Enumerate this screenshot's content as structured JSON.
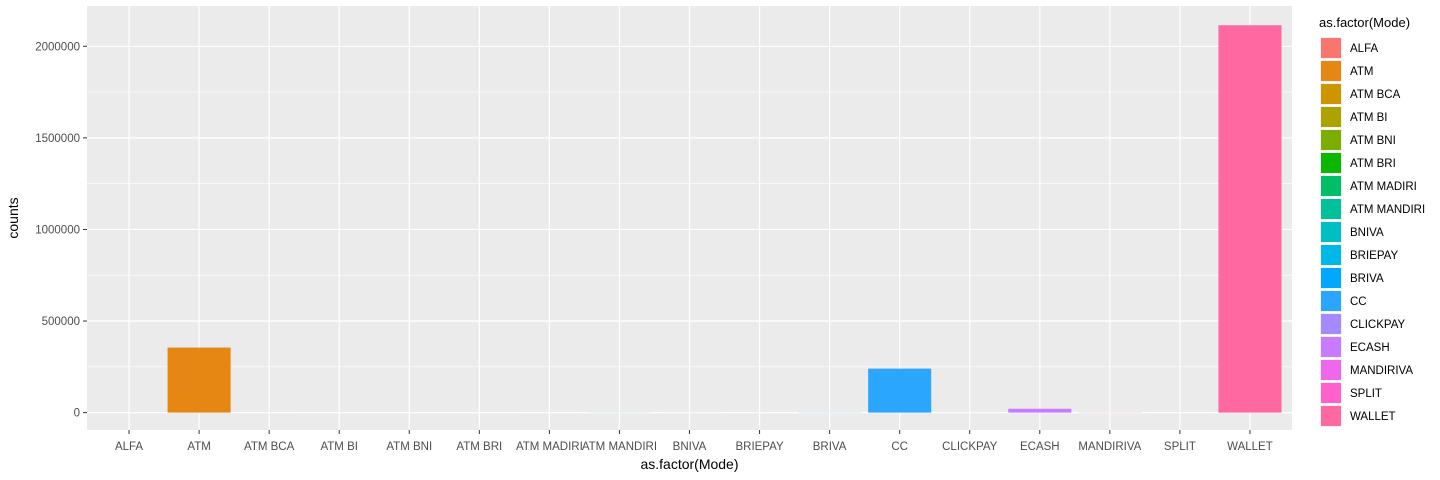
{
  "chart_data": {
    "type": "bar",
    "categories": [
      "ALFA",
      "ATM",
      "ATM BCA",
      "ATM BI",
      "ATM BNI",
      "ATM BRI",
      "ATM MADIRI",
      "ATM MANDIRI",
      "BNIVA",
      "BRIEPAY",
      "BRIVA",
      "CC",
      "CLICKPAY",
      "ECASH",
      "MANDIRIVA",
      "SPLIT",
      "WALLET"
    ],
    "values": [
      50,
      355000,
      120,
      30,
      40,
      60,
      10,
      500,
      200,
      150,
      700,
      240000,
      300,
      21000,
      900,
      100,
      2115000
    ],
    "colors": [
      "#F8766D",
      "#E68613",
      "#CD9600",
      "#ABA300",
      "#7CAE00",
      "#0CB702",
      "#00BE67",
      "#00C19A",
      "#00BFC4",
      "#00B8E7",
      "#00A9FF",
      "#2BA6FF",
      "#A58AFF",
      "#C77CFF",
      "#ED68ED",
      "#FF61CC",
      "#FF68A1"
    ],
    "xlabel": "as.factor(Mode)",
    "ylabel": "counts",
    "ylim": [
      -95000,
      2220000
    ],
    "yticks": [
      0,
      500000,
      1000000,
      1500000,
      2000000
    ],
    "ytick_labels": [
      "0",
      "500000",
      "1000000",
      "1500000",
      "2000000"
    ],
    "grid": true,
    "legend": {
      "title": "as.factor(Mode)",
      "placement": "right",
      "entries": [
        "ALFA",
        "ATM",
        "ATM BCA",
        "ATM BI",
        "ATM BNI",
        "ATM BRI",
        "ATM MADIRI",
        "ATM MANDIRI",
        "BNIVA",
        "BRIEPAY",
        "BRIVA",
        "CC",
        "CLICKPAY",
        "ECASH",
        "MANDIRIVA",
        "SPLIT",
        "WALLET"
      ]
    }
  }
}
